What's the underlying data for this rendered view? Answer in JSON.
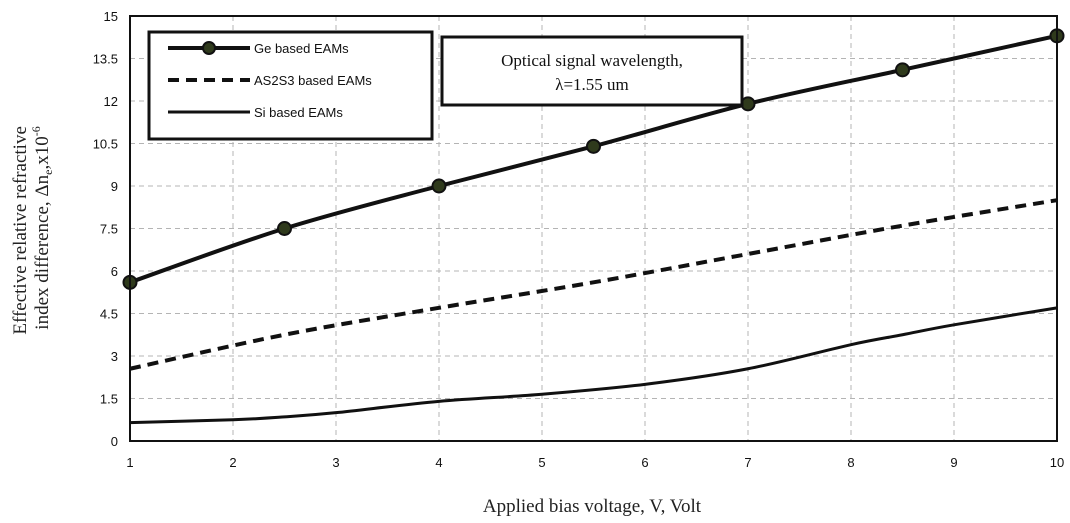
{
  "chart_data": {
    "type": "line",
    "xlabel": "Applied bias voltage, V, Volt",
    "ylabel_lines": [
      "Effective relative refractive",
      "index difference, Δn"
    ],
    "ylabel_sub": "e",
    "ylabel_mult": ",x10",
    "ylabel_exp": "-6",
    "xlim": [
      1,
      10
    ],
    "ylim": [
      0,
      15
    ],
    "xticks": [
      "1",
      "2",
      "3",
      "4",
      "5",
      "6",
      "7",
      "8",
      "9",
      "10"
    ],
    "yticks": [
      "0",
      "1.5",
      "3",
      "4.5",
      "6",
      "7.5",
      "9",
      "10.5",
      "12",
      "13.5",
      "15"
    ],
    "grid": true,
    "legend_position": "top-left",
    "annotation": [
      "Optical signal wavelength,",
      "λ=1.55 um"
    ],
    "series": [
      {
        "name": "Ge based EAMs",
        "style": "solid-markers",
        "color": "#111111",
        "marker_color": "#2f3a1c",
        "x": [
          1,
          2.5,
          4,
          5.5,
          7,
          8.5,
          10
        ],
        "y": [
          5.6,
          7.5,
          9.0,
          10.4,
          11.9,
          13.1,
          14.3
        ]
      },
      {
        "name": "AS2S3 based EAMs",
        "style": "dashed",
        "color": "#111111",
        "x": [
          1,
          2.5,
          4,
          5.5,
          7,
          8.5,
          10
        ],
        "y": [
          2.55,
          3.75,
          4.7,
          5.6,
          6.6,
          7.6,
          8.5
        ]
      },
      {
        "name": "Si based EAMs",
        "style": "solid",
        "color": "#111111",
        "x": [
          1,
          2,
          2.5,
          3,
          4,
          5,
          6,
          7,
          8,
          8.5,
          9,
          10
        ],
        "y": [
          0.65,
          0.75,
          0.85,
          1.0,
          1.4,
          1.65,
          2.0,
          2.55,
          3.4,
          3.75,
          4.1,
          4.7
        ]
      }
    ]
  }
}
